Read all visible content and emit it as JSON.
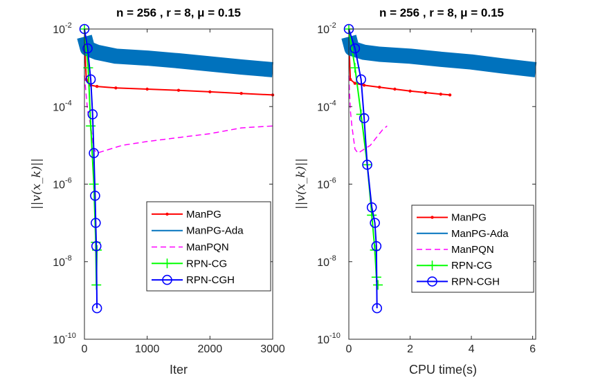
{
  "chart_data": [
    {
      "type": "line",
      "title": "n = 256 , r = 8, μ = 0.15",
      "xlabel": "Iter",
      "ylabel": "||v(x_k)||",
      "xlim": [
        0,
        3000
      ],
      "ylim_exponents": [
        -10,
        -2
      ],
      "y_scale": "log",
      "xticks": [
        "0",
        "1000",
        "2000",
        "3000"
      ],
      "yticks": [
        "10",
        "10",
        "10",
        "10",
        "10"
      ],
      "ytick_exponents": [
        "-10",
        "-8",
        "-6",
        "-4",
        "-2"
      ],
      "legend_position": "bottom-right",
      "series": [
        {
          "name": "ManPG",
          "color": "#ff0000",
          "x": [
            0,
            30,
            100,
            200,
            500,
            1000,
            1500,
            2000,
            2500,
            3000
          ],
          "log10_y": [
            -2.3,
            -3.3,
            -3.45,
            -3.48,
            -3.52,
            -3.55,
            -3.58,
            -3.62,
            -3.66,
            -3.7
          ]
        },
        {
          "name": "ManPG-Ada",
          "color": "#0072bd",
          "x": [
            0,
            50,
            200,
            500,
            1000,
            1500,
            2000,
            2500,
            3000
          ],
          "log10_y": [
            -2.2,
            -2.5,
            -2.6,
            -2.7,
            -2.75,
            -2.82,
            -2.9,
            -2.98,
            -3.05
          ]
        },
        {
          "name": "ManPQN",
          "color": "#ff00ff",
          "x": [
            0,
            50,
            100,
            150,
            200,
            400,
            600,
            1000,
            1500,
            2000,
            2500,
            3000
          ],
          "log10_y": [
            -3.2,
            -4.1,
            -4.5,
            -5.1,
            -5.2,
            -5.1,
            -5.0,
            -4.9,
            -4.8,
            -4.7,
            -4.55,
            -4.5
          ]
        },
        {
          "name": "RPN-CG",
          "color": "#00ff00",
          "x": [
            0,
            60,
            100,
            150,
            180,
            190,
            200
          ],
          "log10_y": [
            -2.0,
            -3.0,
            -4.5,
            -6.0,
            -7.5,
            -8.6,
            -7.7
          ]
        },
        {
          "name": "RPN-CGH",
          "color": "#0000ff",
          "x": [
            0,
            50,
            100,
            130,
            150,
            170,
            180,
            190,
            200
          ],
          "log10_y": [
            -2.0,
            -2.5,
            -3.3,
            -4.2,
            -5.2,
            -6.3,
            -7.0,
            -7.6,
            -9.2
          ]
        }
      ]
    },
    {
      "type": "line",
      "title": "n = 256 , r = 8, μ = 0.15",
      "xlabel": "CPU time(s)",
      "ylabel": "||v(x_k)||",
      "xlim": [
        0,
        6.1
      ],
      "ylim_exponents": [
        -10,
        -2
      ],
      "y_scale": "log",
      "xticks": [
        "0",
        "2",
        "4",
        "6"
      ],
      "yticks": [
        "10",
        "10",
        "10",
        "10",
        "10"
      ],
      "ytick_exponents": [
        "-10",
        "-8",
        "-6",
        "-4",
        "-2"
      ],
      "legend_position": "bottom-right",
      "series": [
        {
          "name": "ManPG",
          "color": "#ff0000",
          "x": [
            0,
            0.05,
            0.2,
            0.5,
            1.0,
            1.5,
            2.0,
            2.5,
            3.0,
            3.3
          ],
          "log10_y": [
            -2.3,
            -3.3,
            -3.4,
            -3.45,
            -3.5,
            -3.55,
            -3.6,
            -3.64,
            -3.68,
            -3.7
          ]
        },
        {
          "name": "ManPG-Ada",
          "color": "#0072bd",
          "x": [
            0,
            0.1,
            0.5,
            1.0,
            2.0,
            3.0,
            4.0,
            5.0,
            6.1
          ],
          "log10_y": [
            -2.2,
            -2.5,
            -2.6,
            -2.65,
            -2.7,
            -2.78,
            -2.85,
            -2.95,
            -3.05
          ]
        },
        {
          "name": "ManPQN",
          "color": "#ff00ff",
          "x": [
            0,
            0.05,
            0.1,
            0.2,
            0.3,
            0.5,
            0.7,
            0.9,
            1.1,
            1.25
          ],
          "log10_y": [
            -3.2,
            -4.1,
            -4.5,
            -5.1,
            -5.2,
            -5.1,
            -5.0,
            -4.8,
            -4.6,
            -4.5
          ]
        },
        {
          "name": "RPN-CG",
          "color": "#00ff00",
          "x": [
            0,
            0.2,
            0.4,
            0.6,
            0.75,
            0.85,
            0.9,
            0.95
          ],
          "log10_y": [
            -2.0,
            -3.0,
            -4.2,
            -5.5,
            -6.8,
            -7.7,
            -8.4,
            -8.6
          ]
        },
        {
          "name": "RPN-CGH",
          "color": "#0000ff",
          "x": [
            0,
            0.2,
            0.4,
            0.5,
            0.6,
            0.75,
            0.85,
            0.9,
            0.92
          ],
          "log10_y": [
            -2.0,
            -2.5,
            -3.3,
            -4.3,
            -5.5,
            -6.6,
            -7.0,
            -7.6,
            -9.2
          ]
        }
      ]
    }
  ]
}
